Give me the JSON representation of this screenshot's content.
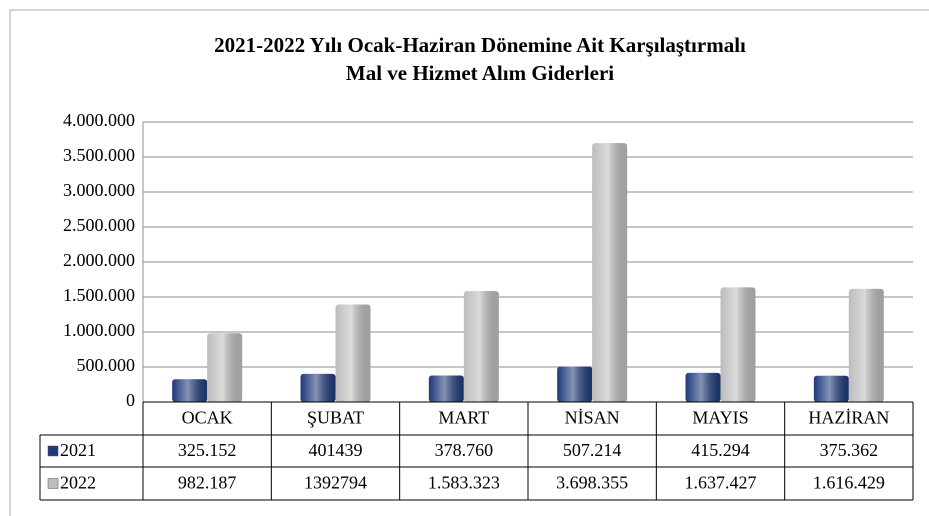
{
  "chart_data": {
    "type": "bar",
    "title": [
      "2021-2022 Yılı Ocak-Haziran Dönemine Ait Karşılaştırmalı",
      "Mal ve Hizmet Alım Giderleri"
    ],
    "categories": [
      "OCAK",
      "ŞUBAT",
      "MART",
      "NİSAN",
      "MAYIS",
      "HAZİRAN"
    ],
    "series": [
      {
        "name": "2021",
        "color": "#1f3a7a",
        "values": [
          325152,
          401439,
          378760,
          507214,
          415294,
          375362
        ],
        "value_labels": [
          "325.152",
          "401439",
          "378.760",
          "507.214",
          "415.294",
          "375.362"
        ]
      },
      {
        "name": "2022",
        "color": "#bdbdbd",
        "values": [
          982187,
          1392794,
          1583323,
          3698355,
          1637427,
          1616429
        ],
        "value_labels": [
          "982.187",
          "1392794",
          "1.583.323",
          "3.698.355",
          "1.637.427",
          "1.616.429"
        ]
      }
    ],
    "ylim": [
      0,
      4000000
    ],
    "yticks": [
      0,
      {
        "value": 500000,
        "label": "500.000"
      },
      {
        "value": 1000000,
        "label": "1.000.000"
      },
      {
        "value": 1500000,
        "label": "1.500.000"
      },
      {
        "value": 2000000,
        "label": "2.000.000"
      },
      {
        "value": 2500000,
        "label": "2.500.000"
      },
      {
        "value": 3000000,
        "label": "3.000.000"
      },
      {
        "value": 3500000,
        "label": "3.500.000"
      },
      {
        "value": 4000000,
        "label": "4.000.000"
      }
    ],
    "grid": true
  }
}
